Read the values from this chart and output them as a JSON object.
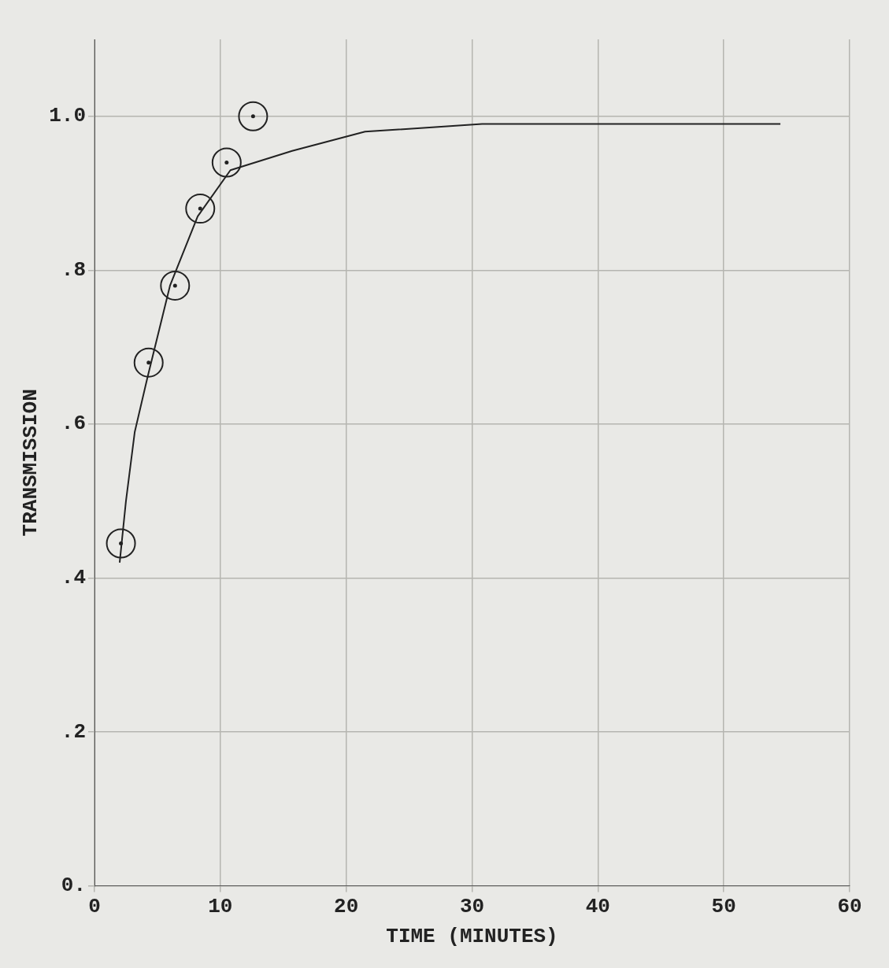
{
  "chart_data": {
    "type": "scatter",
    "xlabel": "TIME (MINUTES)",
    "ylabel": "TRANSMISSION",
    "xlim": [
      0,
      60
    ],
    "xticks": [
      0,
      10,
      20,
      30,
      40,
      50,
      60
    ],
    "ylim": [
      0,
      1.1
    ],
    "yticks": [
      {
        "value": 0,
        "label": "0."
      },
      {
        "value": 0.2,
        "label": ".2"
      },
      {
        "value": 0.4,
        "label": ".4"
      },
      {
        "value": 0.6,
        "label": ".6"
      },
      {
        "value": 0.8,
        "label": ".8"
      },
      {
        "value": 1.0,
        "label": "1.0"
      }
    ],
    "grid": true,
    "legend": false,
    "series": [
      {
        "type": "scatter",
        "marker": "circle",
        "color": "#222222",
        "x": [
          2.1,
          4.3,
          6.4,
          8.4,
          10.5,
          12.6
        ],
        "values": [
          0.445,
          0.68,
          0.78,
          0.88,
          0.94,
          1.0
        ]
      },
      {
        "type": "line",
        "marker": "none",
        "line_style": "solid",
        "color": "#222222",
        "x": [
          2.0,
          2.5,
          3.2,
          4.2,
          6.0,
          8.2,
          10.8,
          15.7,
          21.5,
          30.8,
          54.5
        ],
        "values": [
          0.42,
          0.5,
          0.59,
          0.66,
          0.78,
          0.87,
          0.93,
          0.955,
          0.98,
          0.99,
          0.99
        ]
      }
    ]
  }
}
